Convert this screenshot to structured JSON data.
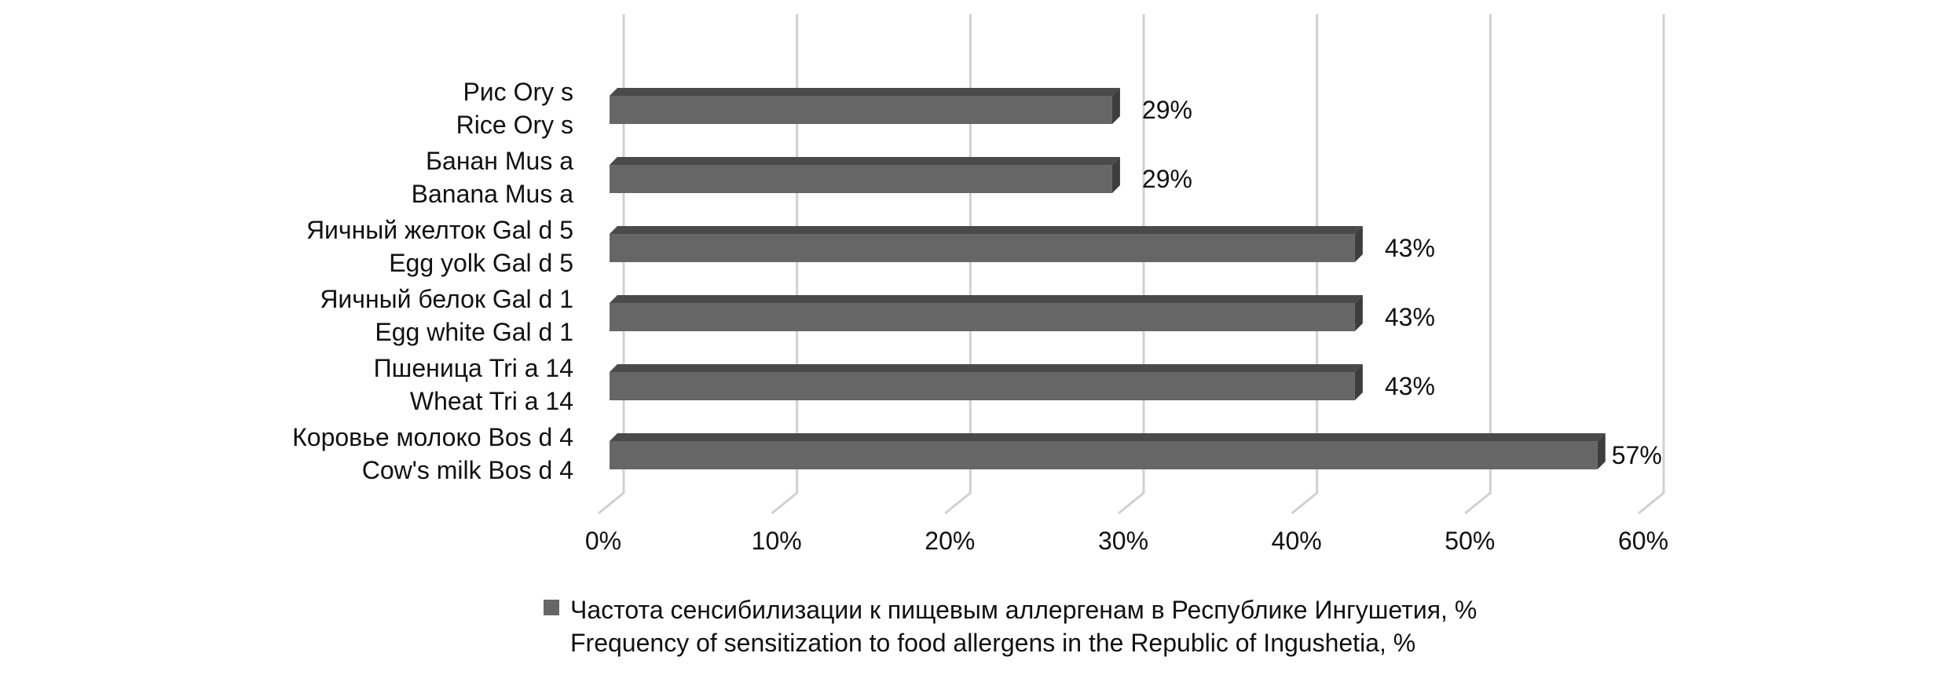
{
  "chart_data": {
    "type": "bar",
    "orientation": "horizontal",
    "three_d": true,
    "categories": [
      [
        "Рис Ory s",
        "Rice Ory s"
      ],
      [
        "Банан Mus a",
        "Banana Mus a"
      ],
      [
        "Яичный желток Gal d 5",
        "Egg yolk Gal d 5"
      ],
      [
        "Яичный белок Gal d 1",
        "Egg white Gal d 1"
      ],
      [
        "Пшеница Tri a 14",
        "Wheat Tri a 14"
      ],
      [
        "Коровье молоко Bos d 4",
        "Cow's milk Bos d 4"
      ]
    ],
    "series": [
      {
        "name": [
          "Частота сенсибилизации к пищевым аллергенам в Республике Ингушетия, %",
          "Frequency of sensitization to food allergens in the Republic of Ingushetia, %"
        ],
        "values": [
          29,
          29,
          43,
          43,
          43,
          57
        ],
        "data_labels": [
          "29%",
          "29%",
          "43%",
          "43%",
          "43%",
          "57%"
        ]
      }
    ],
    "xlim": [
      0,
      60
    ],
    "x_ticks": [
      0,
      10,
      20,
      30,
      40,
      50,
      60
    ],
    "x_tick_labels": [
      "0%",
      "10%",
      "20%",
      "30%",
      "40%",
      "50%",
      "60%"
    ],
    "grid": true,
    "legend_position": "bottom",
    "colors": {
      "bar_front": "#666666",
      "bar_top": "#4a4a4a",
      "bar_side": "#3d3d3d",
      "grid": "#d0d0d0",
      "text": "#111111",
      "legend_marker": "#666666"
    }
  }
}
